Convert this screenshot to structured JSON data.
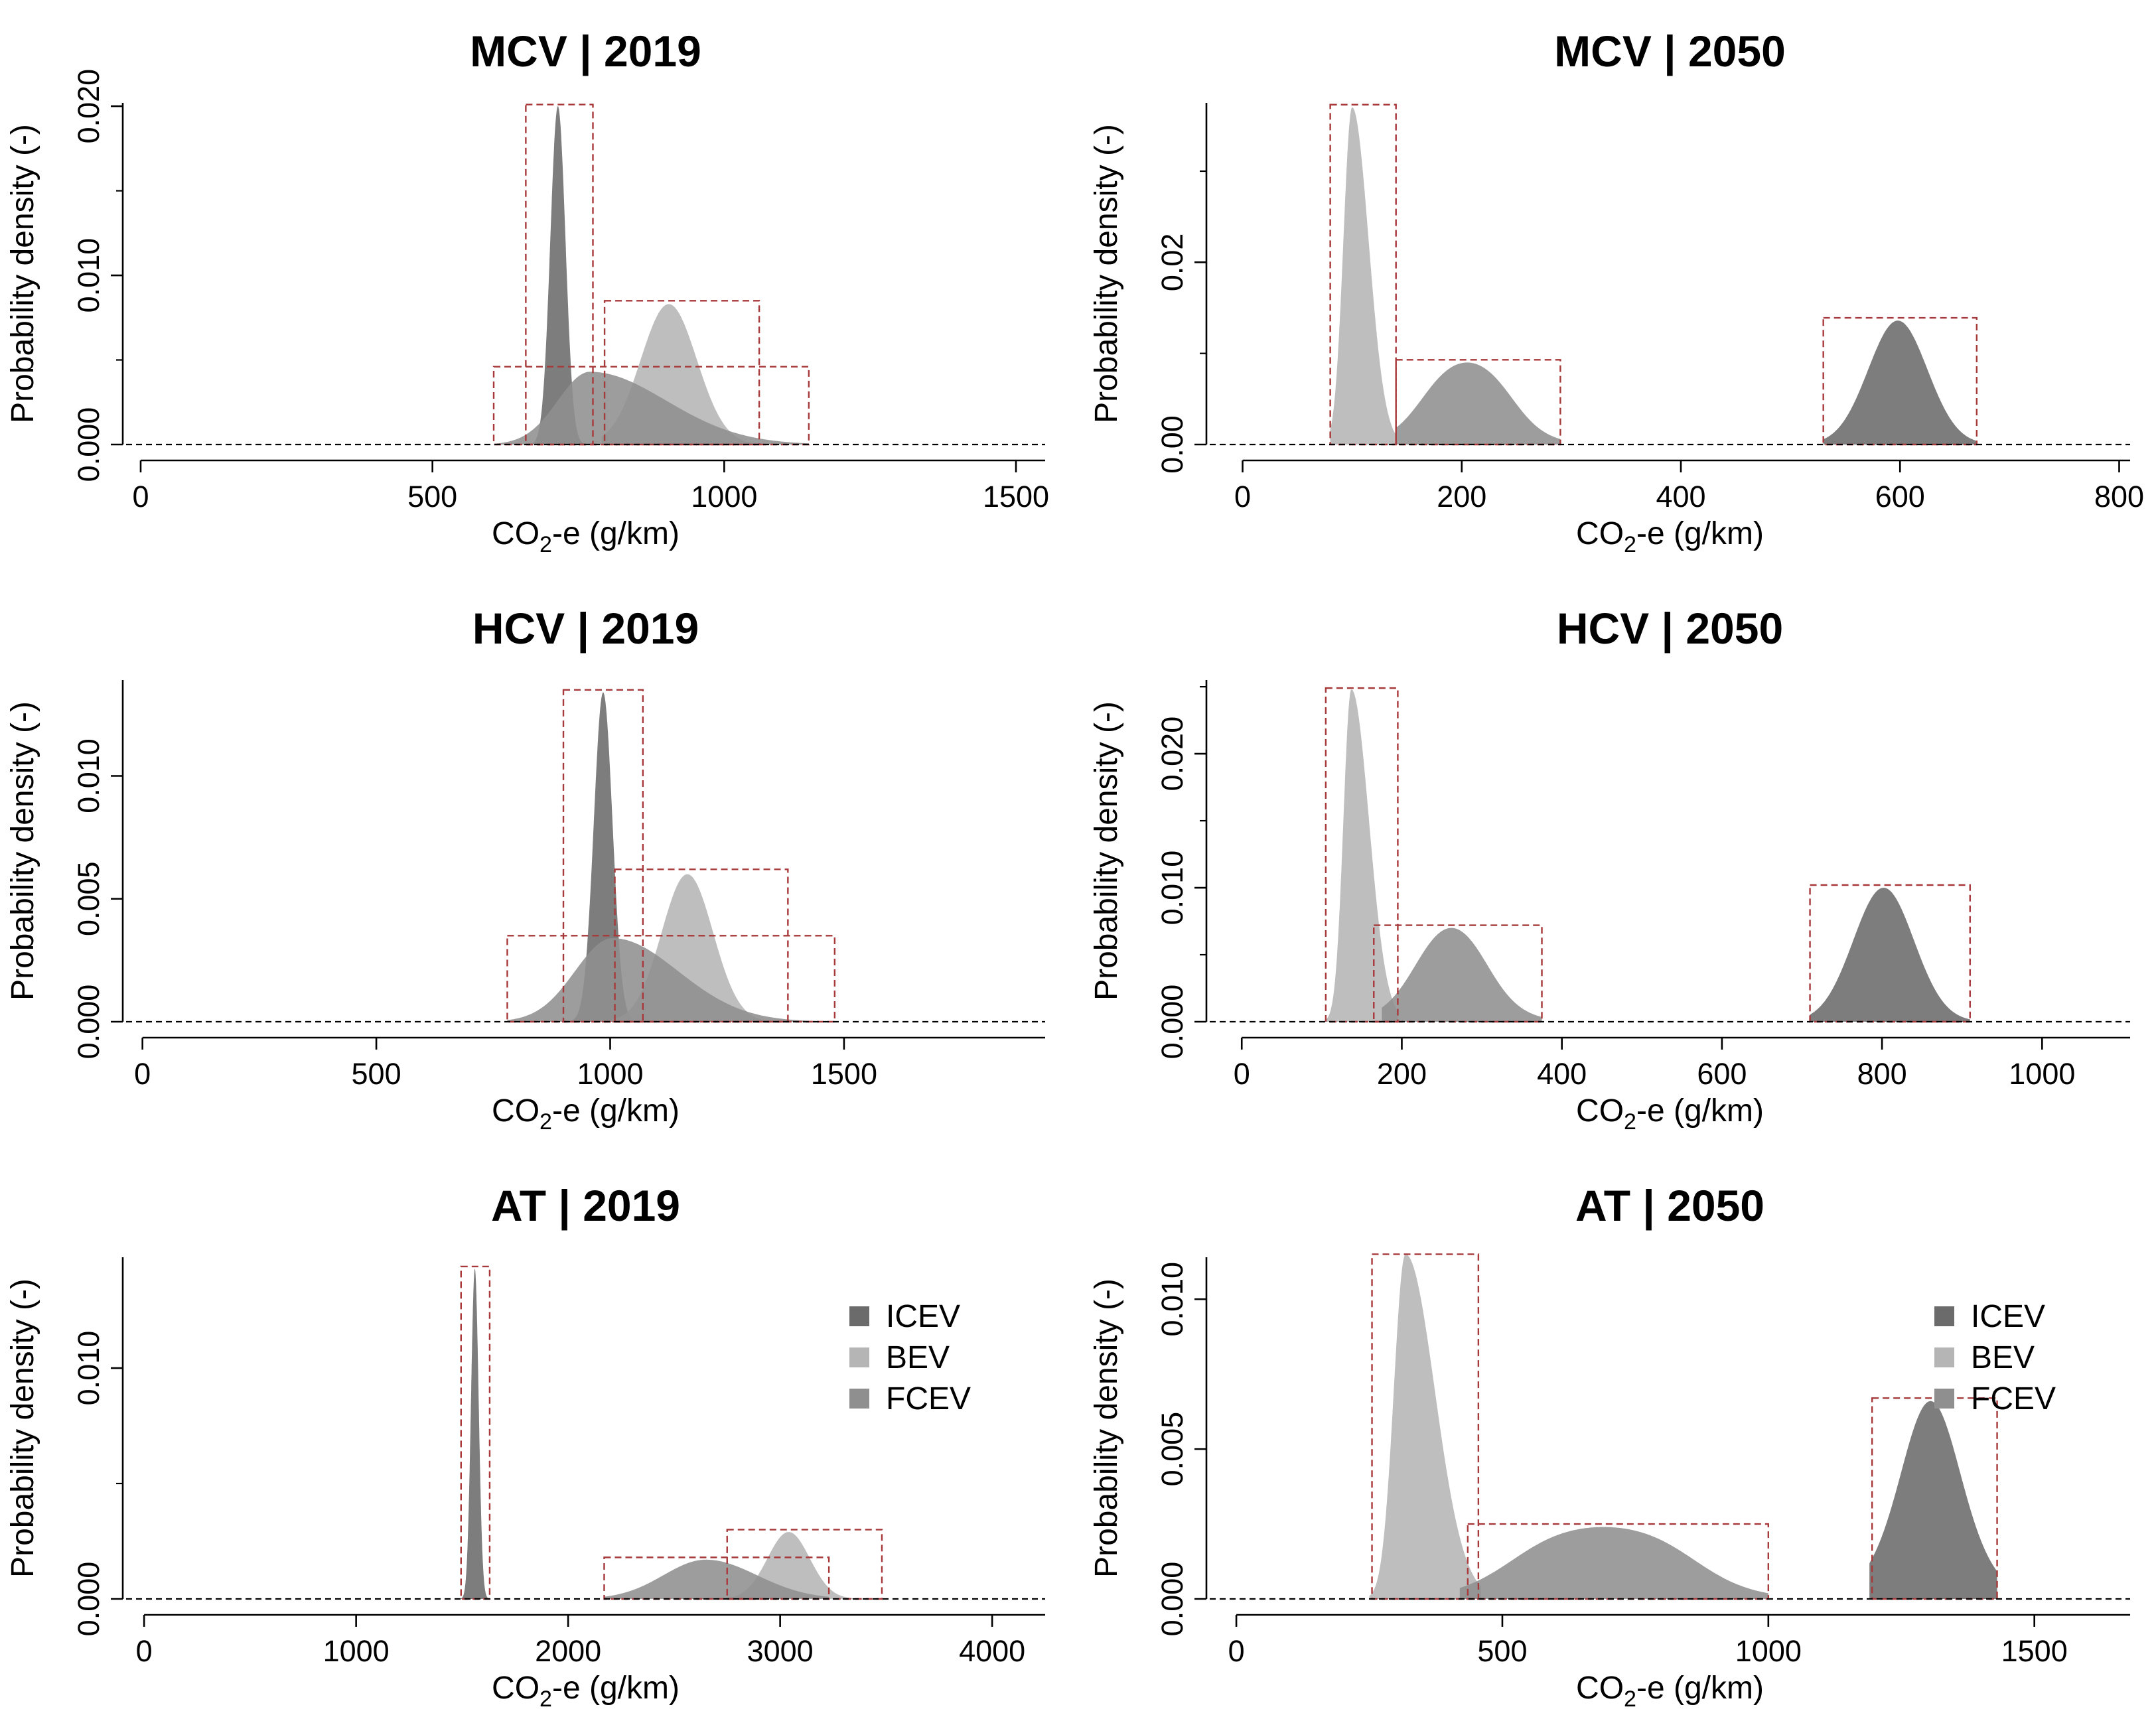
{
  "chart_data": [
    {
      "type": "area",
      "title": "MCV | 2019",
      "xlabel_main": "CO",
      "xlabel_sub": "2",
      "xlabel_rest": "-e (g/km)",
      "ylabel": "Probability density (-)",
      "xlim": [
        -25,
        1550
      ],
      "ylim": [
        0,
        0.0202
      ],
      "xticks": [
        0,
        500,
        1000,
        1500
      ],
      "xtick_labels": [
        "0",
        "500",
        "1000",
        "1500"
      ],
      "yticks": [
        0,
        0.01,
        0.02
      ],
      "ytick_labels": [
        "0.000",
        "0.010",
        "0.020"
      ],
      "minor_yticks": [
        0.005,
        0.015
      ],
      "series": [
        {
          "name": "ICEV",
          "color": "#6b6b6b",
          "dist": "gauss",
          "mu": 715,
          "sigma": 13,
          "peak": 0.02,
          "lo": 660,
          "hi": 775
        },
        {
          "name": "BEV",
          "color": "#b5b5b5",
          "dist": "gauss",
          "mu": 905,
          "sigma": 48,
          "peak": 0.0083,
          "lo": 790,
          "hi": 1060
        },
        {
          "name": "FCEV",
          "color": "#8f8f8f",
          "dist": "skew",
          "mu": 770,
          "sl": 55,
          "sr": 130,
          "peak": 0.0043,
          "lo": 605,
          "hi": 1145
        }
      ],
      "boxes": [
        {
          "x0": 660,
          "x1": 775,
          "top": 0.0201
        },
        {
          "x0": 795,
          "x1": 1060,
          "top": 0.0085
        },
        {
          "x0": 605,
          "x1": 1145,
          "top": 0.0046
        }
      ]
    },
    {
      "type": "area",
      "title": "MCV | 2050",
      "xlabel_main": "CO",
      "xlabel_sub": "2",
      "xlabel_rest": "-e (g/km)",
      "ylabel": "Probability density (-)",
      "xlim": [
        -30,
        810
      ],
      "ylim": [
        0,
        0.0375
      ],
      "xticks": [
        0,
        200,
        400,
        600,
        800
      ],
      "xtick_labels": [
        "0",
        "200",
        "400",
        "600",
        "800"
      ],
      "yticks": [
        0,
        0.02
      ],
      "ytick_labels": [
        "0.00",
        "0.02"
      ],
      "minor_yticks": [
        0.01,
        0.03
      ],
      "series": [
        {
          "name": "ICEV",
          "color": "#6b6b6b",
          "dist": "gauss",
          "mu": 598,
          "sigma": 27,
          "peak": 0.0136,
          "lo": 530,
          "hi": 670
        },
        {
          "name": "BEV",
          "color": "#b5b5b5",
          "dist": "skew",
          "mu": 100,
          "sl": 8,
          "sr": 15,
          "peak": 0.037,
          "lo": 80,
          "hi": 140
        },
        {
          "name": "FCEV",
          "color": "#8f8f8f",
          "dist": "plateau",
          "mu": 205,
          "half": 40,
          "s": 16,
          "peak": 0.009,
          "lo": 140,
          "hi": 290
        }
      ],
      "boxes": [
        {
          "x0": 80,
          "x1": 140,
          "top": 0.0373
        },
        {
          "x0": 140,
          "x1": 290,
          "top": 0.0093
        },
        {
          "x0": 530,
          "x1": 670,
          "top": 0.0139
        }
      ]
    },
    {
      "type": "area",
      "title": "HCV | 2019",
      "xlabel_main": "CO",
      "xlabel_sub": "2",
      "xlabel_rest": "-e (g/km)",
      "ylabel": "Probability density (-)",
      "xlim": [
        -35,
        1930
      ],
      "ylim": [
        0,
        0.0139
      ],
      "xticks": [
        0,
        500,
        1000,
        1500
      ],
      "xtick_labels": [
        "0",
        "500",
        "1000",
        "1500"
      ],
      "yticks": [
        0,
        0.005,
        0.01
      ],
      "ytick_labels": [
        "0.000",
        "0.005",
        "0.010"
      ],
      "series": [
        {
          "name": "ICEV",
          "color": "#6b6b6b",
          "dist": "gauss",
          "mu": 985,
          "sigma": 20,
          "peak": 0.0134,
          "lo": 905,
          "hi": 1070
        },
        {
          "name": "BEV",
          "color": "#b5b5b5",
          "dist": "gauss",
          "mu": 1165,
          "sigma": 55,
          "peak": 0.006,
          "lo": 1000,
          "hi": 1380
        },
        {
          "name": "FCEV",
          "color": "#8f8f8f",
          "dist": "skew",
          "mu": 1005,
          "sl": 80,
          "sr": 140,
          "peak": 0.0034,
          "lo": 780,
          "hi": 1480
        }
      ],
      "boxes": [
        {
          "x0": 900,
          "x1": 1070,
          "top": 0.0135
        },
        {
          "x0": 1010,
          "x1": 1380,
          "top": 0.0062
        },
        {
          "x0": 780,
          "x1": 1480,
          "top": 0.0035
        }
      ]
    },
    {
      "type": "area",
      "title": "HCV | 2050",
      "xlabel_main": "CO",
      "xlabel_sub": "2",
      "xlabel_rest": "-e (g/km)",
      "ylabel": "Probability density (-)",
      "xlim": [
        -40,
        1110
      ],
      "ylim": [
        0,
        0.0255
      ],
      "xticks": [
        0,
        200,
        400,
        600,
        800,
        1000
      ],
      "xtick_labels": [
        "0",
        "200",
        "400",
        "600",
        "800",
        "1000"
      ],
      "yticks": [
        0,
        0.01,
        0.02
      ],
      "ytick_labels": [
        "0.000",
        "0.010",
        "0.020"
      ],
      "minor_yticks": [
        0.005,
        0.015,
        0.025
      ],
      "series": [
        {
          "name": "ICEV",
          "color": "#6b6b6b",
          "dist": "gauss",
          "mu": 802,
          "sigma": 38,
          "peak": 0.01,
          "lo": 710,
          "hi": 910
        },
        {
          "name": "BEV",
          "color": "#b5b5b5",
          "dist": "skew",
          "mu": 137,
          "sl": 10,
          "sr": 22,
          "peak": 0.0248,
          "lo": 105,
          "hi": 195
        },
        {
          "name": "FCEV",
          "color": "#8f8f8f",
          "dist": "plateau",
          "mu": 262,
          "half": 42,
          "s": 22,
          "peak": 0.007,
          "lo": 175,
          "hi": 375
        }
      ],
      "boxes": [
        {
          "x0": 105,
          "x1": 195,
          "top": 0.0249
        },
        {
          "x0": 165,
          "x1": 375,
          "top": 0.0072
        },
        {
          "x0": 710,
          "x1": 910,
          "top": 0.0102
        }
      ]
    },
    {
      "type": "area",
      "title": "AT | 2019",
      "xlabel_main": "CO",
      "xlabel_sub": "2",
      "xlabel_rest": "-e (g/km)",
      "ylabel": "Probability density (-)",
      "xlim": [
        -85,
        4250
      ],
      "ylim": [
        0,
        0.0148
      ],
      "xticks": [
        0,
        1000,
        2000,
        3000,
        4000
      ],
      "xtick_labels": [
        "0",
        "1000",
        "2000",
        "3000",
        "4000"
      ],
      "yticks": [
        0,
        0.01
      ],
      "ytick_labels": [
        "0.000",
        "0.010"
      ],
      "minor_yticks": [
        0.005,
        0.015
      ],
      "series": [
        {
          "name": "ICEV",
          "color": "#6b6b6b",
          "dist": "gauss",
          "mu": 1560,
          "sigma": 18,
          "peak": 0.0143,
          "lo": 1490,
          "hi": 1630
        },
        {
          "name": "BEV",
          "color": "#b5b5b5",
          "dist": "gauss",
          "mu": 3040,
          "sigma": 100,
          "peak": 0.0029,
          "lo": 2750,
          "hi": 3480
        },
        {
          "name": "FCEV",
          "color": "#8f8f8f",
          "dist": "skew",
          "mu": 2650,
          "sl": 200,
          "sr": 240,
          "peak": 0.0017,
          "lo": 2170,
          "hi": 3230
        }
      ],
      "boxes": [
        {
          "x0": 1495,
          "x1": 1630,
          "top": 0.0144
        },
        {
          "x0": 2750,
          "x1": 3480,
          "top": 0.003
        },
        {
          "x0": 2170,
          "x1": 3230,
          "top": 0.0018
        }
      ],
      "legend": {
        "position": "top-right",
        "items": [
          "ICEV",
          "BEV",
          "FCEV"
        ]
      }
    },
    {
      "type": "area",
      "title": "AT | 2050",
      "xlabel_main": "CO",
      "xlabel_sub": "2",
      "xlabel_rest": "-e (g/km)",
      "ylabel": "Probability density (-)",
      "xlim": [
        -50,
        1680
      ],
      "ylim": [
        0,
        0.0114
      ],
      "xticks": [
        0,
        500,
        1000,
        1500
      ],
      "xtick_labels": [
        "0",
        "500",
        "1000",
        "1500"
      ],
      "yticks": [
        0,
        0.005,
        0.01
      ],
      "ytick_labels": [
        "0.000",
        "0.005",
        "0.010"
      ],
      "series": [
        {
          "name": "ICEV",
          "color": "#6b6b6b",
          "dist": "plateau",
          "mu": 1305,
          "half": 40,
          "s": 35,
          "peak": 0.0066,
          "lo": 1190,
          "hi": 1430
        },
        {
          "name": "BEV",
          "color": "#b5b5b5",
          "dist": "skew",
          "mu": 318,
          "sl": 22,
          "sr": 55,
          "peak": 0.0115,
          "lo": 250,
          "hi": 460
        },
        {
          "name": "FCEV",
          "color": "#8f8f8f",
          "dist": "plateau",
          "mu": 690,
          "half": 170,
          "s": 55,
          "peak": 0.0024,
          "lo": 420,
          "hi": 1000
        }
      ],
      "boxes": [
        {
          "x0": 255,
          "x1": 455,
          "top": 0.0115
        },
        {
          "x0": 435,
          "x1": 1000,
          "top": 0.0025
        },
        {
          "x0": 1195,
          "x1": 1430,
          "top": 0.0067
        }
      ],
      "legend": {
        "position": "top-right",
        "items": [
          "ICEV",
          "BEV",
          "FCEV"
        ]
      }
    }
  ]
}
